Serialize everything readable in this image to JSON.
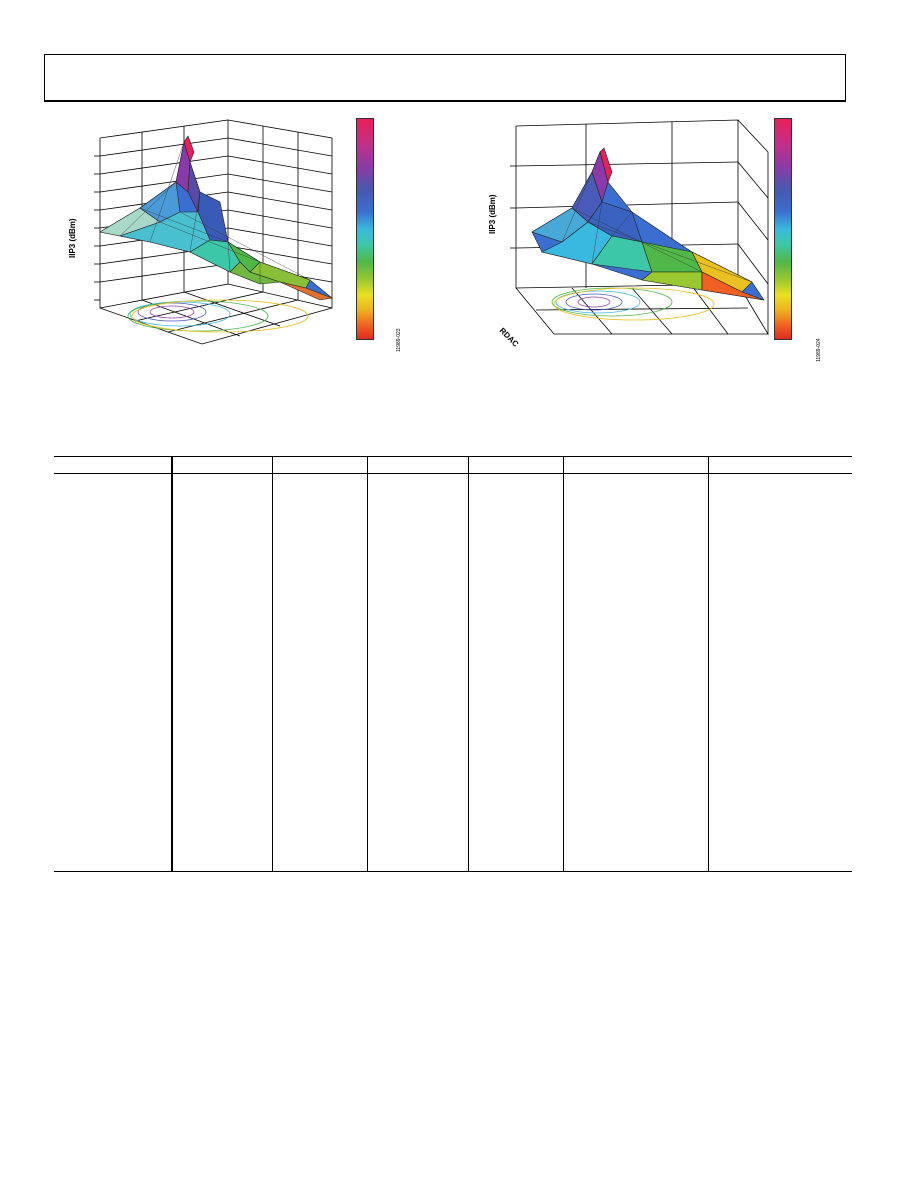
{
  "figures": [
    {
      "ylabel": "IIP3 (dBm)",
      "figure_number": "11989-023",
      "axis_label": ""
    },
    {
      "ylabel": "IIP3 (dBm)",
      "figure_number": "11989-024",
      "axis_label": "RDAC"
    }
  ],
  "colors": {
    "surface_peak": "#e8205a",
    "surface_mid": "#3a6ed0",
    "surface_low": "#50b848",
    "surface_edge": "#e02a20"
  }
}
